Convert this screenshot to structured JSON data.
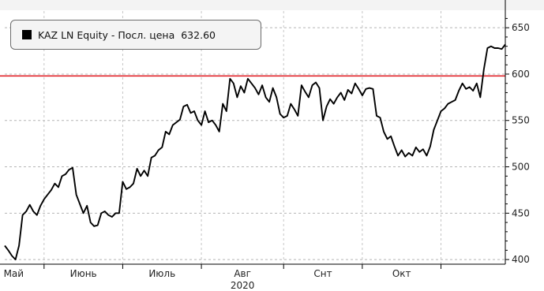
{
  "chart_data": {
    "type": "line",
    "legend": {
      "text": "KAZ LN Equity - Посл. цена",
      "last_value": "632.60",
      "color": "#000000",
      "placement": "top-left"
    },
    "y_axis": {
      "position": "right",
      "ticks": [
        400,
        450,
        500,
        550,
        600,
        650
      ],
      "ylim": [
        395,
        668
      ]
    },
    "x_axis": {
      "months": [
        "Май",
        "Июнь",
        "Июль",
        "Авг",
        "Снт",
        "Окт"
      ],
      "year": "2020",
      "xlim": [
        0,
        140
      ]
    },
    "reference_line": {
      "value": 598,
      "color": "#e0252b"
    },
    "line_color": "#000000",
    "grid": true,
    "series": [
      {
        "values": [
          415,
          410,
          404,
          400,
          415,
          448,
          452,
          459,
          452,
          448,
          458,
          465,
          470,
          475,
          482,
          478,
          490,
          492,
          497,
          499,
          470,
          460,
          450,
          458,
          440,
          436,
          437,
          450,
          452,
          448,
          446,
          450,
          450,
          484,
          476,
          478,
          482,
          498,
          490,
          496,
          490,
          510,
          512,
          518,
          521,
          538,
          535,
          545,
          548,
          551,
          565,
          567,
          558,
          560,
          550,
          545,
          560,
          548,
          550,
          545,
          538,
          568,
          560,
          595,
          590,
          575,
          587,
          580,
          595,
          590,
          585,
          578,
          588,
          575,
          570,
          585,
          575,
          557,
          553,
          555,
          568,
          562,
          555,
          588,
          581,
          575,
          588,
          591,
          585,
          550,
          565,
          573,
          568,
          575,
          580,
          572,
          583,
          579,
          590,
          584,
          577,
          584,
          585,
          584,
          555,
          553,
          538,
          530,
          533,
          522,
          512,
          518,
          511,
          515,
          512,
          521,
          516,
          519,
          512,
          522,
          540,
          550,
          560,
          563,
          568,
          570,
          572,
          582,
          590,
          584,
          586,
          582,
          590,
          575,
          605,
          628,
          630,
          628,
          628,
          627,
          632
        ]
      }
    ]
  }
}
